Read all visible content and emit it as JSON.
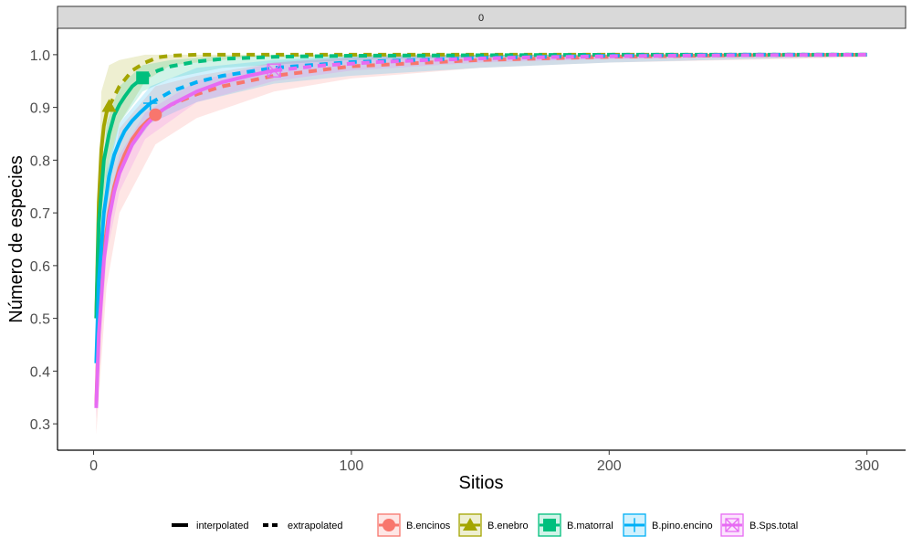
{
  "chart_data": {
    "type": "line",
    "facet_label": "0",
    "xlabel": "Sitios",
    "ylabel": "Número de especies",
    "xlim": [
      -14,
      315
    ],
    "ylim": [
      0.25,
      1.05
    ],
    "x_ticks": [
      0,
      100,
      200,
      300
    ],
    "y_ticks": [
      0.3,
      0.4,
      0.5,
      0.6,
      0.7,
      0.8,
      0.9,
      1.0
    ],
    "y_tick_labels": [
      "0.3",
      "0.4",
      "0.5",
      "0.6",
      "0.7",
      "0.8",
      "0.9",
      "1.0"
    ],
    "grid": false,
    "legend_position": "bottom",
    "linetype_legend": [
      {
        "key": "interpolated",
        "label": "interpolated",
        "dash": "solid"
      },
      {
        "key": "extrapolated",
        "label": "extrapolated",
        "dash": "dashed"
      }
    ],
    "series": [
      {
        "name": "B.encinos",
        "color": "#F8766D",
        "shape": "circle",
        "observed": {
          "x": 24,
          "y": 0.886
        },
        "interpolated": {
          "x": [
            1,
            2,
            4,
            6,
            8,
            10,
            12,
            15,
            18,
            21,
            24
          ],
          "y": [
            0.335,
            0.49,
            0.63,
            0.7,
            0.75,
            0.785,
            0.81,
            0.84,
            0.86,
            0.875,
            0.886
          ]
        },
        "extrapolated": {
          "x": [
            24,
            30,
            40,
            50,
            70,
            100,
            150,
            200,
            250,
            300
          ],
          "y": [
            0.886,
            0.905,
            0.925,
            0.94,
            0.96,
            0.978,
            0.99,
            0.996,
            0.999,
            1.0
          ]
        },
        "band": {
          "x": [
            1,
            5,
            10,
            24,
            40,
            70,
            100,
            150,
            200,
            300
          ],
          "lower": [
            0.28,
            0.56,
            0.7,
            0.83,
            0.88,
            0.93,
            0.955,
            0.975,
            0.985,
            0.995
          ],
          "upper": [
            0.36,
            0.72,
            0.86,
            0.94,
            0.96,
            0.985,
            0.995,
            1.0,
            1.0,
            1.0
          ]
        }
      },
      {
        "name": "B.enebro",
        "color": "#A3A500",
        "shape": "triangle",
        "observed": {
          "x": 6,
          "y": 0.902
        },
        "interpolated": {
          "x": [
            1,
            2,
            3,
            4,
            5,
            6
          ],
          "y": [
            0.5,
            0.72,
            0.82,
            0.865,
            0.89,
            0.902
          ]
        },
        "extrapolated": {
          "x": [
            6,
            10,
            15,
            20,
            25,
            30,
            40,
            60,
            100,
            150,
            200,
            250,
            300
          ],
          "y": [
            0.902,
            0.94,
            0.97,
            0.985,
            0.995,
            0.998,
            1.0,
            1.0,
            1.0,
            1.0,
            1.0,
            1.0,
            1.0
          ]
        },
        "band": {
          "x": [
            1,
            3,
            6,
            10,
            20,
            30,
            60,
            300
          ],
          "lower": [
            0.42,
            0.7,
            0.8,
            0.87,
            0.95,
            0.98,
            0.995,
            1.0
          ],
          "upper": [
            0.58,
            0.93,
            0.98,
            0.99,
            1.0,
            1.0,
            1.0,
            1.0
          ]
        }
      },
      {
        "name": "B.matorral",
        "color": "#00BF7D",
        "shape": "square",
        "observed": {
          "x": 19,
          "y": 0.956
        },
        "interpolated": {
          "x": [
            1,
            2,
            4,
            6,
            8,
            10,
            12,
            15,
            19
          ],
          "y": [
            0.5,
            0.68,
            0.8,
            0.85,
            0.885,
            0.905,
            0.92,
            0.94,
            0.956
          ]
        },
        "extrapolated": {
          "x": [
            19,
            25,
            30,
            40,
            50,
            70,
            100,
            150,
            200,
            250,
            300
          ],
          "y": [
            0.956,
            0.97,
            0.978,
            0.987,
            0.992,
            0.996,
            0.998,
            0.999,
            1.0,
            1.0,
            1.0
          ]
        },
        "band": {
          "x": [
            1,
            5,
            10,
            19,
            30,
            50,
            100,
            150,
            200,
            300
          ],
          "lower": [
            0.45,
            0.76,
            0.87,
            0.93,
            0.955,
            0.975,
            0.99,
            0.995,
            0.998,
            1.0
          ],
          "upper": [
            0.55,
            0.87,
            0.94,
            0.98,
            0.99,
            0.998,
            1.0,
            1.0,
            1.0,
            1.0
          ]
        }
      },
      {
        "name": "B.pino.encino",
        "color": "#00B0F6",
        "shape": "plus",
        "observed": {
          "x": 22,
          "y": 0.908
        },
        "interpolated": {
          "x": [
            1,
            2,
            4,
            6,
            8,
            10,
            12,
            15,
            18,
            22
          ],
          "y": [
            0.415,
            0.57,
            0.7,
            0.77,
            0.81,
            0.835,
            0.855,
            0.875,
            0.89,
            0.908
          ]
        },
        "extrapolated": {
          "x": [
            22,
            30,
            40,
            50,
            70,
            100,
            150,
            200,
            250,
            300
          ],
          "y": [
            0.908,
            0.93,
            0.948,
            0.96,
            0.975,
            0.986,
            0.994,
            0.998,
            1.0,
            1.0
          ]
        },
        "band": {
          "x": [
            1,
            5,
            10,
            22,
            40,
            70,
            100,
            150,
            200,
            300
          ],
          "lower": [
            0.39,
            0.68,
            0.79,
            0.87,
            0.91,
            0.945,
            0.96,
            0.975,
            0.985,
            0.997
          ],
          "upper": [
            0.44,
            0.78,
            0.87,
            0.94,
            0.975,
            0.99,
            0.997,
            1.0,
            1.0,
            1.0
          ]
        }
      },
      {
        "name": "B.Sps.total",
        "color": "#E76BF3",
        "shape": "square-x",
        "observed": {
          "x": 70,
          "y": 0.97
        },
        "interpolated": {
          "x": [
            1,
            2,
            4,
            6,
            8,
            10,
            15,
            20,
            25,
            30,
            40,
            50,
            60,
            70
          ],
          "y": [
            0.33,
            0.47,
            0.61,
            0.69,
            0.74,
            0.775,
            0.83,
            0.865,
            0.89,
            0.905,
            0.93,
            0.948,
            0.96,
            0.97
          ]
        },
        "extrapolated": {
          "x": [
            70,
            90,
            110,
            130,
            160,
            200,
            250,
            300
          ],
          "y": [
            0.97,
            0.98,
            0.986,
            0.99,
            0.994,
            0.997,
            0.999,
            1.0
          ]
        },
        "band": {
          "x": [
            1,
            5,
            10,
            20,
            40,
            70,
            100,
            150,
            200,
            300
          ],
          "lower": [
            0.31,
            0.62,
            0.74,
            0.84,
            0.91,
            0.95,
            0.97,
            0.985,
            0.992,
            0.998
          ],
          "upper": [
            0.35,
            0.7,
            0.81,
            0.89,
            0.95,
            0.985,
            0.995,
            1.0,
            1.0,
            1.0
          ]
        }
      }
    ]
  }
}
